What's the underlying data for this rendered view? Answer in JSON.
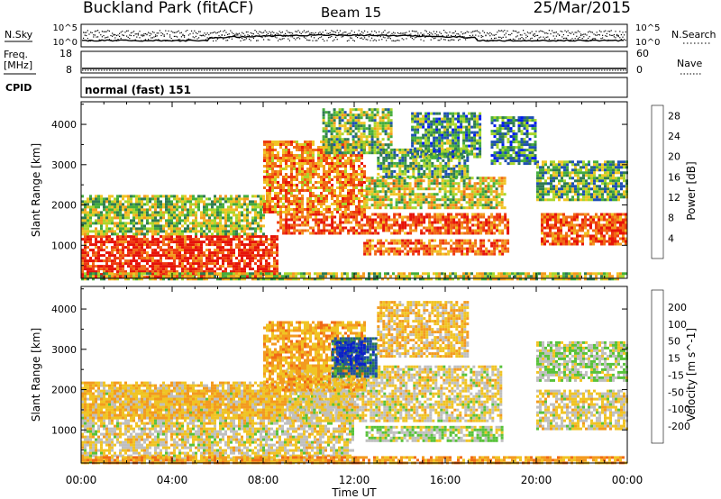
{
  "header": {
    "station": "Buckland Park (fitACF)",
    "beam": "Beam 15",
    "date": "25/Mar/2015"
  },
  "strips": {
    "nsky_label": "N.Sky",
    "nsky_ticks": [
      "10^5",
      "10^0"
    ],
    "nsearch_label": "N.Search",
    "nsearch_ticks": [
      "10^5",
      "10^0"
    ],
    "freq_label": "Freq.",
    "freq_unit": "[MHz]",
    "freq_ticks": [
      "18",
      "8"
    ],
    "nave_label": "Nave",
    "nave_ticks": [
      "60",
      "0"
    ],
    "cpid_label": "CPID",
    "cpid_value": "normal (fast) 151"
  },
  "chart_data": [
    {
      "type": "heatmap",
      "panel": "power",
      "title": "",
      "xlabel": "Time UT",
      "ylabel": "Slant Range [km]",
      "xlim": [
        "00:00",
        "24:00"
      ],
      "ylim": [
        180,
        4560
      ],
      "x_ticks": [
        "00:00",
        "04:00",
        "08:00",
        "12:00",
        "16:00",
        "20:00",
        "00:00"
      ],
      "y_ticks": [
        1000,
        2000,
        3000,
        4000
      ],
      "colorbar": {
        "label": "Power [dB]",
        "ticks": [
          "4",
          "8",
          "12",
          "16",
          "20",
          "24",
          "28"
        ],
        "range": [
          0,
          30
        ],
        "colors": [
          "#0018f0",
          "#1e4fb4",
          "#2f7b52",
          "#44ad3d",
          "#a8d62c",
          "#f0c424",
          "#f39a1f",
          "#f06a16",
          "#ee3a10",
          "#e61309"
        ]
      },
      "regions": [
        {
          "t0": 0.0,
          "t1": 8.6,
          "r0": 200,
          "r1": 1250,
          "level": 27
        },
        {
          "t0": 0.0,
          "t1": 8.0,
          "r0": 1300,
          "r1": 2250,
          "level": 13
        },
        {
          "t0": 8.6,
          "t1": 18.8,
          "r0": 1300,
          "r1": 1800,
          "level": 24
        },
        {
          "t0": 8.0,
          "t1": 12.4,
          "r0": 1800,
          "r1": 3600,
          "level": 21
        },
        {
          "t0": 10.6,
          "t1": 13.6,
          "r0": 3300,
          "r1": 4400,
          "level": 12
        },
        {
          "t0": 12.5,
          "t1": 18.6,
          "r0": 1950,
          "r1": 2700,
          "level": 15
        },
        {
          "t0": 13.0,
          "t1": 17.0,
          "r0": 2700,
          "r1": 3400,
          "level": 10
        },
        {
          "t0": 14.5,
          "t1": 17.5,
          "r0": 3200,
          "r1": 4300,
          "level": 9
        },
        {
          "t0": 12.4,
          "t1": 18.7,
          "r0": 750,
          "r1": 1150,
          "level": 23
        },
        {
          "t0": 20.2,
          "t1": 24.0,
          "r0": 1000,
          "r1": 1800,
          "level": 24
        },
        {
          "t0": 20.0,
          "t1": 24.0,
          "r0": 2100,
          "r1": 3100,
          "level": 11
        },
        {
          "t0": 18.0,
          "t1": 20.0,
          "r0": 3000,
          "r1": 4200,
          "level": 8
        },
        {
          "t0": 0.0,
          "t1": 24.0,
          "r0": 180,
          "r1": 330,
          "level": 14
        }
      ]
    },
    {
      "type": "heatmap",
      "panel": "velocity",
      "title": "",
      "xlabel": "Time UT",
      "ylabel": "Slant Range [km]",
      "xlim": [
        "00:00",
        "24:00"
      ],
      "ylim": [
        180,
        4560
      ],
      "x_ticks": [
        "00:00",
        "04:00",
        "08:00",
        "12:00",
        "16:00",
        "20:00",
        "00:00"
      ],
      "y_ticks": [
        1000,
        2000,
        3000,
        4000
      ],
      "colorbar": {
        "label": "Velocity [m s^-1]",
        "ticks": [
          "200",
          "100",
          "50",
          "15",
          "-15",
          "-50",
          "-100",
          "-200"
        ],
        "range": [
          250,
          -250
        ],
        "colors": [
          "#0b1fcc",
          "#1f4fa8",
          "#2a7c4e",
          "#58c23a",
          "#bfbfbf",
          "#f0c424",
          "#f39a1f",
          "#f06a16",
          "#ee3a10",
          "#e61309"
        ]
      },
      "regions": [
        {
          "t0": 0.0,
          "t1": 12.0,
          "r0": 200,
          "r1": 2000,
          "level": 0
        },
        {
          "t0": 9.0,
          "t1": 18.5,
          "r0": 1200,
          "r1": 2600,
          "level": 0
        },
        {
          "t0": 0.0,
          "t1": 9.0,
          "r0": 1300,
          "r1": 2200,
          "level": -40
        },
        {
          "t0": 8.0,
          "t1": 12.5,
          "r0": 2000,
          "r1": 3700,
          "level": -60
        },
        {
          "t0": 11.0,
          "t1": 13.0,
          "r0": 2300,
          "r1": 3300,
          "level": 150
        },
        {
          "t0": 11.2,
          "t1": 12.5,
          "r0": 2600,
          "r1": 3200,
          "level": 220
        },
        {
          "t0": 12.5,
          "t1": 18.5,
          "r0": 700,
          "r1": 1100,
          "level": 40
        },
        {
          "t0": 20.0,
          "t1": 24.0,
          "r0": 1000,
          "r1": 2000,
          "level": 0
        },
        {
          "t0": 20.0,
          "t1": 24.0,
          "r0": 2200,
          "r1": 3200,
          "level": 40
        },
        {
          "t0": 13.0,
          "t1": 17.0,
          "r0": 2800,
          "r1": 4200,
          "level": -30
        },
        {
          "t0": 0.0,
          "t1": 24.0,
          "r0": 180,
          "r1": 350,
          "level": -70
        }
      ]
    }
  ]
}
